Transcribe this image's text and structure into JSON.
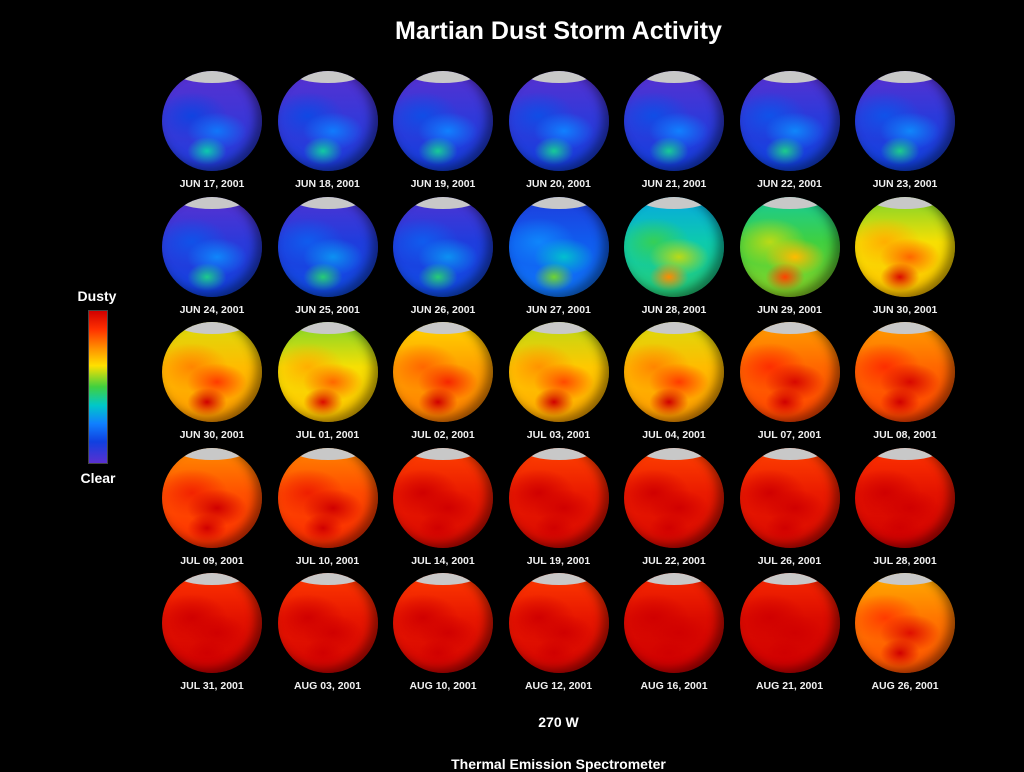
{
  "title": "Martian Dust Storm Activity",
  "legend": {
    "top_label": "Dusty",
    "bottom_label": "Clear",
    "colors": [
      "#d00000",
      "#ff3000",
      "#ff8c00",
      "#ffe000",
      "#40d040",
      "#00c8c8",
      "#1080ff",
      "#1040e0",
      "#5a30d0"
    ]
  },
  "longitude_label": "270 W",
  "instrument_label": "Thermal Emission Spectrometer",
  "cap_color": "#c8c8c8",
  "frames": [
    {
      "date": "JUN 17, 2001",
      "dust": 0.05
    },
    {
      "date": "JUN 18, 2001",
      "dust": 0.06
    },
    {
      "date": "JUN 19, 2001",
      "dust": 0.07
    },
    {
      "date": "JUN 20, 2001",
      "dust": 0.07
    },
    {
      "date": "JUN 21, 2001",
      "dust": 0.07
    },
    {
      "date": "JUN 22, 2001",
      "dust": 0.08
    },
    {
      "date": "JUN 23, 2001",
      "dust": 0.08
    },
    {
      "date": "JUN 24, 2001",
      "dust": 0.08
    },
    {
      "date": "JUN 25, 2001",
      "dust": 0.1
    },
    {
      "date": "JUN 26, 2001",
      "dust": 0.1
    },
    {
      "date": "JUN 27, 2001",
      "dust": 0.18
    },
    {
      "date": "JUN 28, 2001",
      "dust": 0.4
    },
    {
      "date": "JUN 29, 2001",
      "dust": 0.5
    },
    {
      "date": "JUN 30, 2001",
      "dust": 0.62
    },
    {
      "date": "JUN 30, 2001",
      "dust": 0.68
    },
    {
      "date": "JUL 01, 2001",
      "dust": 0.62
    },
    {
      "date": "JUL 02, 2001",
      "dust": 0.72
    },
    {
      "date": "JUL 03, 2001",
      "dust": 0.66
    },
    {
      "date": "JUL 04, 2001",
      "dust": 0.68
    },
    {
      "date": "JUL 07, 2001",
      "dust": 0.8
    },
    {
      "date": "JUL 08, 2001",
      "dust": 0.8
    },
    {
      "date": "JUL 09, 2001",
      "dust": 0.83
    },
    {
      "date": "JUL 10, 2001",
      "dust": 0.84
    },
    {
      "date": "JUL 14, 2001",
      "dust": 0.93
    },
    {
      "date": "JUL 19, 2001",
      "dust": 0.93
    },
    {
      "date": "JUL 22, 2001",
      "dust": 0.93
    },
    {
      "date": "JUL 26, 2001",
      "dust": 0.93
    },
    {
      "date": "JUL 28, 2001",
      "dust": 0.95
    },
    {
      "date": "JUL 31, 2001",
      "dust": 0.95
    },
    {
      "date": "AUG 03, 2001",
      "dust": 0.94
    },
    {
      "date": "AUG 10, 2001",
      "dust": 0.94
    },
    {
      "date": "AUG 12, 2001",
      "dust": 0.94
    },
    {
      "date": "AUG 16, 2001",
      "dust": 0.97
    },
    {
      "date": "AUG 21, 2001",
      "dust": 0.97
    },
    {
      "date": "AUG 26, 2001",
      "dust": 0.78
    }
  ]
}
